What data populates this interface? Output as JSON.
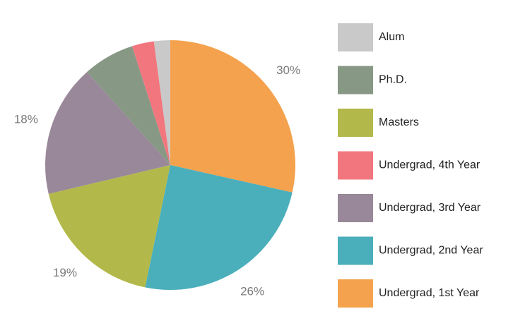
{
  "chart_data": {
    "type": "pie",
    "title": "",
    "start": "12 o'clock, clockwise",
    "slices": [
      {
        "label": "Undergrad, 1st Year",
        "value": 30,
        "color": "#F4A24E",
        "display": "30%"
      },
      {
        "label": "Undergrad, 2nd Year",
        "value": 26,
        "color": "#4AAFBB",
        "display": "26%"
      },
      {
        "label": "Masters",
        "value": 19,
        "color": "#B2B94A",
        "display": "19%"
      },
      {
        "label": "Undergrad, 3rd Year",
        "value": 18,
        "color": "#998899",
        "display": "18%"
      },
      {
        "label": "Ph.D.",
        "value": 7,
        "color": "#879885",
        "display": ""
      },
      {
        "label": "Undergrad, 4th Year",
        "value": 3,
        "color": "#F2767E",
        "display": ""
      },
      {
        "label": "Alum",
        "value": 2.2,
        "color": "#C9C9C9",
        "display": ""
      }
    ],
    "legend": {
      "placement": "right",
      "order": [
        "Alum",
        "Ph.D.",
        "Masters",
        "Undergrad, 4th Year",
        "Undergrad, 3rd Year",
        "Undergrad, 2nd Year",
        "Undergrad, 1st Year"
      ]
    }
  }
}
